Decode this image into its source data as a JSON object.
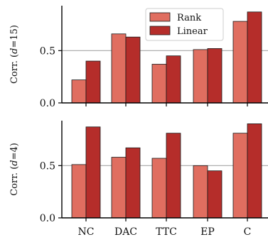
{
  "chart_data": [
    {
      "type": "bar",
      "panel": "top",
      "categories": [
        "NC",
        "DAC",
        "TTC",
        "EP",
        "C"
      ],
      "series": [
        {
          "name": "Rank",
          "values": [
            0.22,
            0.66,
            0.37,
            0.51,
            0.78
          ]
        },
        {
          "name": "Linear",
          "values": [
            0.4,
            0.63,
            0.45,
            0.52,
            0.87
          ]
        }
      ],
      "ylabel_prefix": "Corr. (",
      "ylabel_var": "d",
      "ylabel_suffix": "=15)",
      "yticks": [
        "0.0",
        "0.5"
      ],
      "ytick_values": [
        0.0,
        0.5
      ],
      "ylim": [
        0.0,
        0.93
      ],
      "grid_y": [
        0.5
      ],
      "legend": "top-right"
    },
    {
      "type": "bar",
      "panel": "bottom",
      "categories": [
        "NC",
        "DAC",
        "TTC",
        "EP",
        "C"
      ],
      "series": [
        {
          "name": "Rank",
          "values": [
            0.51,
            0.58,
            0.57,
            0.5,
            0.81
          ]
        },
        {
          "name": "Linear",
          "values": [
            0.87,
            0.67,
            0.81,
            0.45,
            0.9
          ]
        }
      ],
      "ylabel_prefix": "Corr. (",
      "ylabel_var": "d",
      "ylabel_suffix": "=4)",
      "yticks": [
        "0.0",
        "0.5"
      ],
      "ytick_values": [
        0.0,
        0.5
      ],
      "ylim": [
        0.0,
        0.93
      ],
      "grid_y": [
        0.5
      ]
    }
  ],
  "colors": {
    "Rank": "#e06e60",
    "Linear": "#b52d2a",
    "edge": "#1a1a1a",
    "grid": "#b0b0b0"
  },
  "legend": {
    "items": [
      {
        "label": "Rank",
        "color_key": "Rank"
      },
      {
        "label": "Linear",
        "color_key": "Linear"
      }
    ]
  }
}
